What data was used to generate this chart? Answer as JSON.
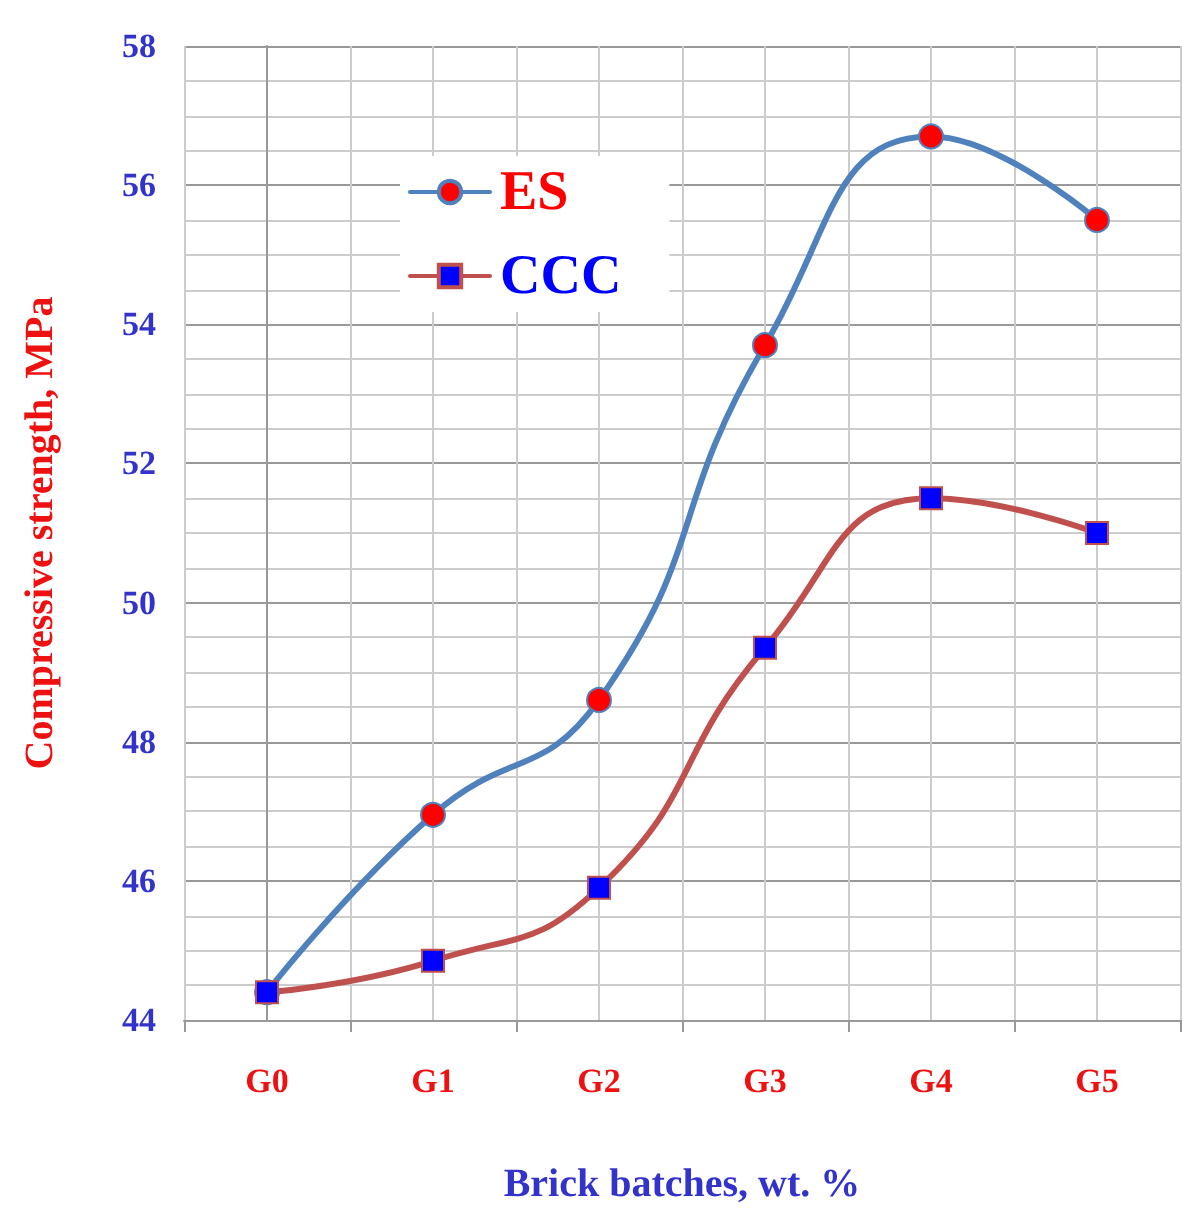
{
  "chart_data": {
    "type": "line",
    "xlabel": "Brick batches, wt. %",
    "ylabel": "Compressive strength, MPa",
    "categories": [
      "G0",
      "G1",
      "G2",
      "G3",
      "G4",
      "G5"
    ],
    "series": [
      {
        "name": "ES",
        "color": "#4f81bd",
        "marker": "circle",
        "values": [
          44.4,
          46.95,
          48.6,
          53.7,
          56.7,
          55.5
        ]
      },
      {
        "name": "CCC",
        "color": "#c0504d",
        "marker": "square",
        "values": [
          44.4,
          44.85,
          45.9,
          49.35,
          51.5,
          51.0
        ]
      }
    ],
    "ylim": [
      44,
      58
    ],
    "yticks": [
      44,
      46,
      48,
      50,
      52,
      54,
      56,
      58
    ],
    "grid": true,
    "legend": "top left"
  }
}
